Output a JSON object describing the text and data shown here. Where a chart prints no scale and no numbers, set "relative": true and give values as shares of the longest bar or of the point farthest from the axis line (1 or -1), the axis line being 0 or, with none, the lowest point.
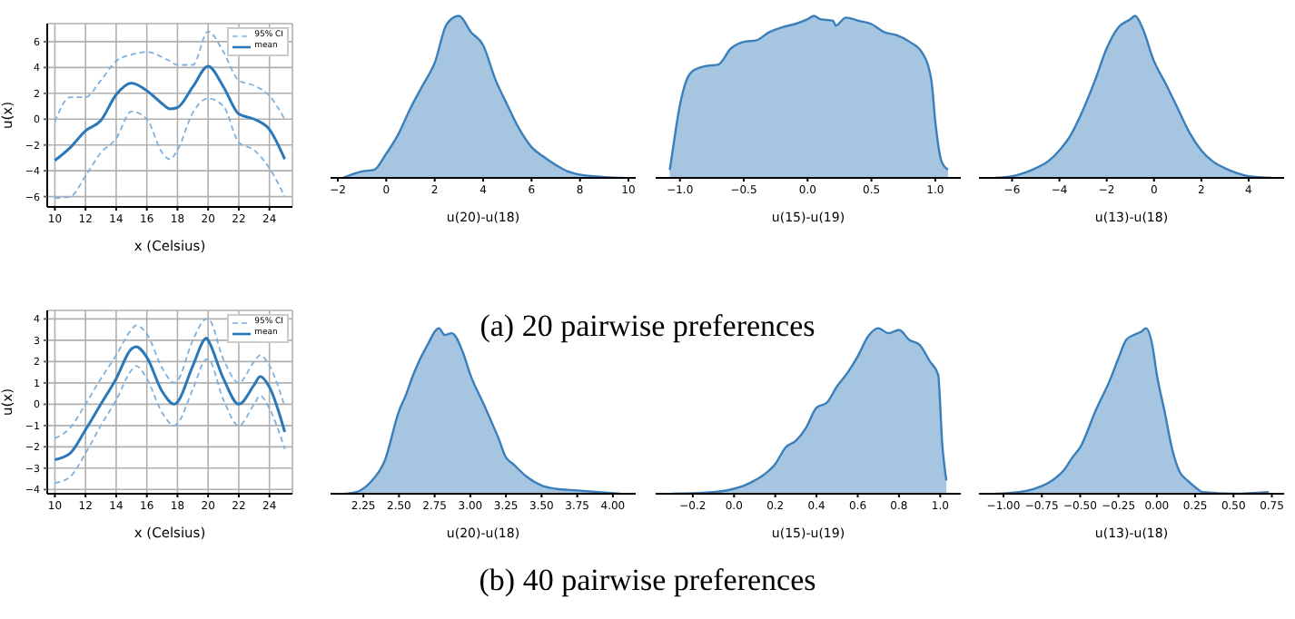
{
  "chart_data": [
    {
      "type": "line",
      "xlabel": "x (Celsius)",
      "ylabel": "u(x)",
      "annotations": [
        "(a) 20 pairwise preferences"
      ],
      "x": [
        10,
        11,
        12,
        13,
        14,
        15,
        16,
        17,
        17.5,
        18,
        19,
        20,
        21,
        22,
        23,
        24,
        25
      ],
      "xlim": [
        9.5,
        25.5
      ],
      "xticks": [
        10,
        12,
        14,
        16,
        18,
        20,
        22,
        24
      ],
      "ylim": [
        -6.8,
        7.4
      ],
      "yticks": [
        {
          "value": -6,
          "label": "−6"
        },
        {
          "value": -4,
          "label": "−4"
        },
        {
          "value": -2,
          "label": "−2"
        },
        0,
        2,
        4,
        6
      ],
      "grid": true,
      "legend": "top right",
      "series": [
        {
          "name": "95% CI",
          "color": "#7fb0dc",
          "line_style": "dashed",
          "values": [
            -0.2,
            1.7,
            1.7,
            3,
            4.5,
            5,
            5.2,
            4.8,
            4.5,
            4.2,
            4.2,
            6.8,
            5.2,
            3,
            2.6,
            1.8,
            0
          ]
        },
        {
          "name": "mean",
          "color": "#2b78b8",
          "values": [
            -3.2,
            -2.2,
            -0.9,
            -0.1,
            1.9,
            2.8,
            2.2,
            1.2,
            0.8,
            0.9,
            2.5,
            4.1,
            2.5,
            0.4,
            0,
            -0.8,
            -3.1
          ]
        },
        {
          "color": "#7fb0dc",
          "line_style": "dashed",
          "values": [
            -6.1,
            -6,
            -4.4,
            -2.6,
            -1.5,
            0.6,
            0,
            -2.6,
            -3.1,
            -2.4,
            0.5,
            1.6,
            1,
            -1.8,
            -2.4,
            -3.8,
            -6
          ]
        }
      ]
    },
    {
      "type": "area",
      "xlabel": "u(20)-u(18)",
      "relative": true,
      "x": [
        -1.8,
        -1,
        -0.5,
        0,
        0.5,
        1,
        1.5,
        2,
        2.5,
        3,
        3.5,
        4,
        4.5,
        5,
        5.5,
        6,
        6.5,
        7,
        7.5,
        8,
        9,
        9.8
      ],
      "xlim": [
        -2.3,
        10.3
      ],
      "xticks": [
        {
          "value": -2,
          "label": "−2"
        },
        0,
        2,
        4,
        6,
        8,
        10
      ],
      "series": [
        {
          "color": "#3a7fbb",
          "values": [
            0,
            0.04,
            0.05,
            0.15,
            0.27,
            0.43,
            0.57,
            0.71,
            0.95,
            1,
            0.9,
            0.82,
            0.61,
            0.45,
            0.3,
            0.19,
            0.13,
            0.08,
            0.04,
            0.02,
            0.005,
            0
          ]
        }
      ]
    },
    {
      "type": "area",
      "xlabel": "u(15)-u(19)",
      "relative": true,
      "x": [
        -1.08,
        -1.07,
        -1,
        -0.95,
        -0.9,
        -0.8,
        -0.7,
        -0.6,
        -0.5,
        -0.4,
        -0.3,
        -0.2,
        -0.1,
        0,
        0.05,
        0.1,
        0.2,
        0.22,
        0.3,
        0.4,
        0.5,
        0.6,
        0.7,
        0.8,
        0.9,
        0.97,
        1,
        1.05,
        1.1
      ],
      "xlim": [
        -1.19,
        1.2
      ],
      "xticks": [
        {
          "value": -1,
          "label": "−1.0"
        },
        {
          "value": -0.5,
          "label": "−0.5"
        },
        {
          "value": 0,
          "label": "0.0"
        },
        0.5,
        {
          "value": 1,
          "label": "1.0"
        }
      ],
      "series": [
        {
          "color": "#3a7fbb",
          "values": [
            0.05,
            0.1,
            0.45,
            0.6,
            0.66,
            0.69,
            0.7,
            0.8,
            0.84,
            0.85,
            0.9,
            0.93,
            0.95,
            0.98,
            1,
            0.98,
            0.97,
            0.94,
            0.99,
            0.97,
            0.95,
            0.9,
            0.88,
            0.84,
            0.77,
            0.6,
            0.35,
            0.1,
            0.05
          ]
        }
      ]
    },
    {
      "type": "area",
      "xlabel": "u(13)-u(18)",
      "relative": true,
      "x": [
        -6.7,
        -6,
        -5.5,
        -5,
        -4.5,
        -4,
        -3.5,
        -3,
        -2.5,
        -2,
        -1.5,
        -1,
        -0.8,
        -0.5,
        0,
        0.5,
        1,
        1.5,
        2,
        2.5,
        3,
        3.5,
        4,
        5
      ],
      "xlim": [
        -7.4,
        5.5
      ],
      "xticks": [
        {
          "value": -6,
          "label": "−6"
        },
        {
          "value": -4,
          "label": "−4"
        },
        {
          "value": -2,
          "label": "−2"
        },
        0,
        2,
        4
      ],
      "series": [
        {
          "color": "#3a7fbb",
          "values": [
            0,
            0.01,
            0.03,
            0.06,
            0.1,
            0.17,
            0.27,
            0.42,
            0.6,
            0.8,
            0.93,
            0.98,
            1,
            0.93,
            0.72,
            0.58,
            0.43,
            0.28,
            0.17,
            0.1,
            0.06,
            0.03,
            0.01,
            0
          ]
        }
      ]
    },
    {
      "type": "line",
      "xlabel": "x (Celsius)",
      "ylabel": "u(x)",
      "annotations": [
        "(b) 40 pairwise preferences"
      ],
      "x": [
        10,
        11,
        12,
        13,
        14,
        15,
        15.3,
        16,
        17,
        17.8,
        18,
        19,
        19.9,
        20,
        21,
        22,
        23,
        23.4,
        24,
        25
      ],
      "xlim": [
        9.5,
        25.5
      ],
      "xticks": [
        10,
        12,
        14,
        16,
        18,
        20,
        22,
        24
      ],
      "ylim": [
        -4.2,
        4.4
      ],
      "yticks": [
        {
          "value": -4,
          "label": "−4"
        },
        {
          "value": -3,
          "label": "−3"
        },
        {
          "value": -2,
          "label": "−2"
        },
        {
          "value": -1,
          "label": "−1"
        },
        0,
        1,
        2,
        3,
        4
      ],
      "grid": true,
      "legend": "top right",
      "series": [
        {
          "name": "95% CI",
          "color": "#7fb0dc",
          "line_style": "dashed",
          "values": [
            -1.6,
            -1.1,
            0,
            1.2,
            2.3,
            3.5,
            3.7,
            3.3,
            1.7,
            1,
            1.1,
            3,
            4,
            4,
            2.1,
            1,
            2,
            2.3,
            1.8,
            -0.1
          ]
        },
        {
          "name": "mean",
          "color": "#2b78b8",
          "values": [
            -2.6,
            -2.3,
            -1.2,
            0,
            1.2,
            2.6,
            2.7,
            2.2,
            0.6,
            0,
            0.1,
            1.8,
            3.1,
            3,
            1.2,
            0,
            0.9,
            1.3,
            0.8,
            -1.3
          ]
        },
        {
          "color": "#7fb0dc",
          "line_style": "dashed",
          "values": [
            -3.7,
            -3.4,
            -2.3,
            -1,
            0.2,
            1.6,
            1.8,
            1.2,
            -0.4,
            -1,
            -0.9,
            0.7,
            2.1,
            2.1,
            0.2,
            -1,
            0,
            0.4,
            -0.2,
            -2.1
          ]
        }
      ]
    },
    {
      "type": "area",
      "xlabel": "u(20)-u(18)",
      "relative": true,
      "x": [
        2.12,
        2.2,
        2.3,
        2.4,
        2.5,
        2.55,
        2.6,
        2.7,
        2.78,
        2.82,
        2.87,
        2.95,
        3,
        3.1,
        3.2,
        3.25,
        3.3,
        3.4,
        3.5,
        3.6,
        3.75,
        4.05
      ],
      "xlim": [
        2.02,
        4.16
      ],
      "xticks": [
        2.25,
        {
          "value": 2.5,
          "label": "2.50"
        },
        2.75,
        {
          "value": 3,
          "label": "3.00"
        },
        3.25,
        {
          "value": 3.5,
          "label": "3.50"
        },
        3.75,
        {
          "value": 4,
          "label": "4.00"
        }
      ],
      "series": [
        {
          "color": "#3a7fbb",
          "values": [
            0,
            0.01,
            0.07,
            0.2,
            0.5,
            0.6,
            0.72,
            0.9,
            1,
            0.96,
            0.97,
            0.85,
            0.72,
            0.53,
            0.33,
            0.22,
            0.18,
            0.1,
            0.05,
            0.03,
            0.02,
            0
          ]
        }
      ]
    },
    {
      "type": "area",
      "xlabel": "u(15)-u(19)",
      "relative": true,
      "x": [
        -0.3,
        -0.1,
        0,
        0.05,
        0.1,
        0.15,
        0.2,
        0.25,
        0.3,
        0.35,
        0.4,
        0.45,
        0.5,
        0.55,
        0.6,
        0.65,
        0.7,
        0.75,
        0.8,
        0.85,
        0.9,
        0.95,
        0.99,
        1.01,
        1.03
      ],
      "xlim": [
        -0.38,
        1.1
      ],
      "xticks": [
        {
          "value": -0.2,
          "label": "−0.2"
        },
        {
          "value": 0,
          "label": "0.0"
        },
        0.2,
        0.4,
        0.6,
        0.8,
        {
          "value": 1,
          "label": "1.0"
        }
      ],
      "series": [
        {
          "color": "#3a7fbb",
          "values": [
            0,
            0.01,
            0.03,
            0.05,
            0.08,
            0.12,
            0.18,
            0.28,
            0.32,
            0.4,
            0.52,
            0.55,
            0.65,
            0.73,
            0.83,
            0.95,
            1,
            0.97,
            0.99,
            0.93,
            0.9,
            0.8,
            0.72,
            0.3,
            0.08
          ]
        }
      ]
    },
    {
      "type": "area",
      "xlabel": "u(13)-u(18)",
      "relative": true,
      "x": [
        -1.05,
        -0.9,
        -0.8,
        -0.7,
        -0.6,
        -0.55,
        -0.5,
        -0.4,
        -0.3,
        -0.25,
        -0.2,
        -0.15,
        -0.1,
        -0.07,
        -0.03,
        0,
        0.05,
        0.1,
        0.15,
        0.2,
        0.25,
        0.3,
        0.5,
        0.73
      ],
      "xlim": [
        -1.16,
        0.83
      ],
      "xticks": [
        {
          "value": -1,
          "label": "−1.00"
        },
        {
          "value": -0.75,
          "label": "−0.75"
        },
        {
          "value": -0.5,
          "label": "−0.50"
        },
        {
          "value": -0.25,
          "label": "−0.25"
        },
        {
          "value": 0,
          "label": "0.00"
        },
        0.25,
        {
          "value": 0.5,
          "label": "0.50"
        },
        0.75
      ],
      "series": [
        {
          "color": "#3a7fbb",
          "values": [
            0,
            0.01,
            0.03,
            0.07,
            0.15,
            0.22,
            0.28,
            0.5,
            0.7,
            0.82,
            0.93,
            0.96,
            0.98,
            1,
            0.9,
            0.72,
            0.5,
            0.27,
            0.13,
            0.08,
            0.04,
            0.01,
            0,
            0.01
          ]
        }
      ]
    }
  ]
}
